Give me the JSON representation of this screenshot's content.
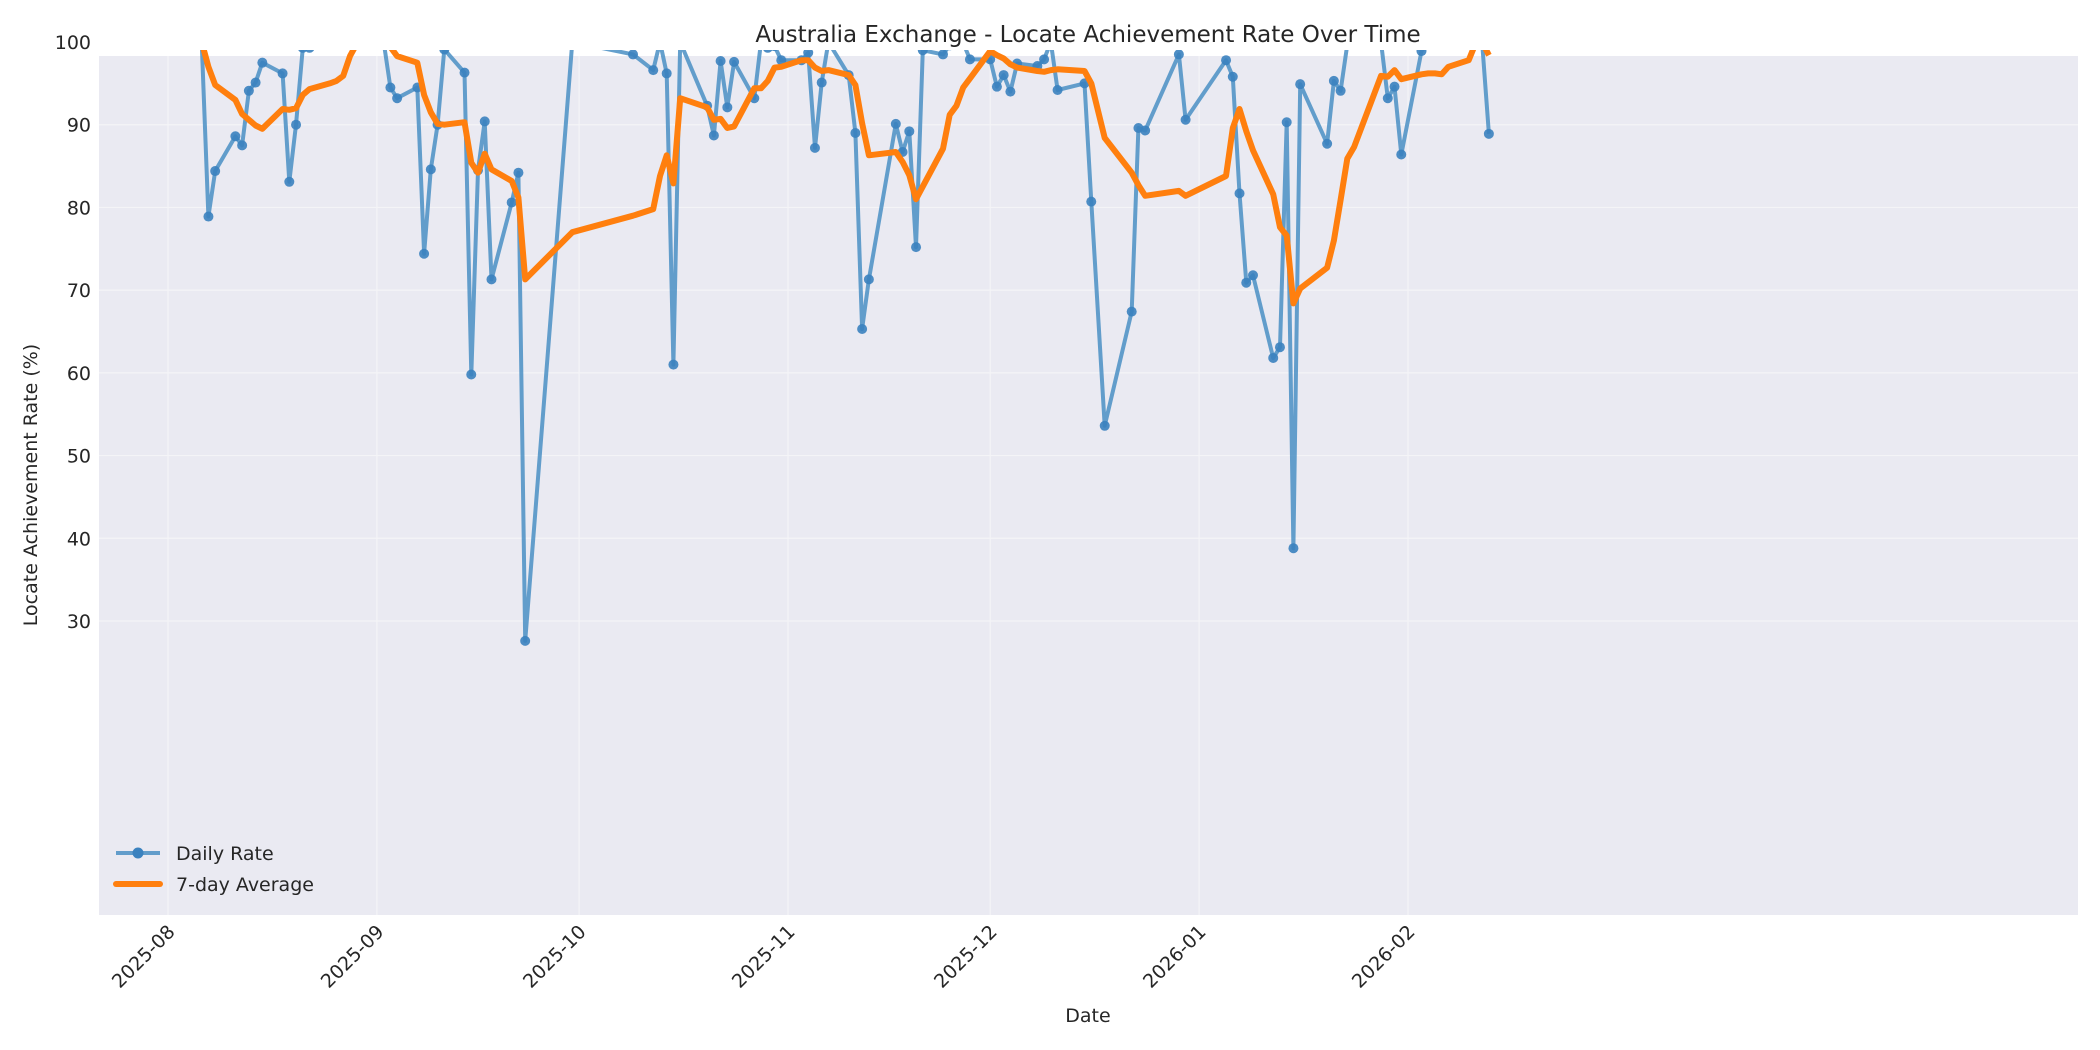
{
  "chart_data": {
    "type": "line",
    "title": "Australia Exchange - Locate Achievement Rate Over Time",
    "xlabel": "Date",
    "ylabel": "Locate Achievement Rate (%)",
    "ylim": [
      22.5,
      100
    ],
    "xlim": [
      "2025-07-18",
      "2026-02-17"
    ],
    "grid": true,
    "legend_position": "lower left",
    "x_ticks": [
      "2025-08",
      "2025-09",
      "2025-10",
      "2025-11",
      "2025-12",
      "2026-01",
      "2026-02"
    ],
    "y_ticks": [
      30,
      40,
      50,
      60,
      70,
      80,
      90,
      100
    ],
    "colors": {
      "daily": "#4a8fc4",
      "avg": "#ff7f0e",
      "plot_bg": "#eaeaf2",
      "grid": "#f5f5f8"
    },
    "series": [
      {
        "name": "Daily Rate",
        "marker": "circle",
        "points": [
          [
            "2025-07-28",
            100
          ],
          [
            "2025-07-29",
            100
          ],
          [
            "2025-07-30",
            100
          ],
          [
            "2025-07-31",
            100
          ],
          [
            "2025-08-01",
            99.7
          ],
          [
            "2025-08-04",
            100
          ],
          [
            "2025-08-05",
            100
          ],
          [
            "2025-08-06",
            100
          ],
          [
            "2025-08-07",
            78.9
          ],
          [
            "2025-08-08",
            84.4
          ],
          [
            "2025-08-11",
            88.6
          ],
          [
            "2025-08-12",
            87.5
          ],
          [
            "2025-08-13",
            94.1
          ],
          [
            "2025-08-14",
            95.1
          ],
          [
            "2025-08-15",
            97.5
          ],
          [
            "2025-08-18",
            96.2
          ],
          [
            "2025-08-19",
            83.1
          ],
          [
            "2025-08-20",
            90.0
          ],
          [
            "2025-08-21",
            99.3
          ],
          [
            "2025-08-22",
            99.3
          ],
          [
            "2025-08-25",
            100
          ],
          [
            "2025-08-26",
            100
          ],
          [
            "2025-08-27",
            100
          ],
          [
            "2025-08-28",
            100
          ],
          [
            "2025-08-29",
            100
          ],
          [
            "2025-09-01",
            100
          ],
          [
            "2025-09-02",
            100
          ],
          [
            "2025-09-03",
            94.5
          ],
          [
            "2025-09-04",
            93.2
          ],
          [
            "2025-09-07",
            94.5
          ],
          [
            "2025-09-08",
            74.4
          ],
          [
            "2025-09-09",
            84.6
          ],
          [
            "2025-09-10",
            90.0
          ],
          [
            "2025-09-11",
            99.1
          ],
          [
            "2025-09-14",
            96.3
          ],
          [
            "2025-09-15",
            59.8
          ],
          [
            "2025-09-16",
            84.5
          ],
          [
            "2025-09-17",
            90.4
          ],
          [
            "2025-09-18",
            71.3
          ],
          [
            "2025-09-21",
            80.6
          ],
          [
            "2025-09-22",
            84.2
          ],
          [
            "2025-09-23",
            27.6
          ],
          [
            "2025-09-30",
            100
          ],
          [
            "2025-10-09",
            98.5
          ],
          [
            "2025-10-12",
            96.6
          ],
          [
            "2025-10-13",
            100
          ],
          [
            "2025-10-14",
            96.2
          ],
          [
            "2025-10-15",
            61.0
          ],
          [
            "2025-10-16",
            100
          ],
          [
            "2025-10-20",
            92.3
          ],
          [
            "2025-10-21",
            88.7
          ],
          [
            "2025-10-22",
            97.7
          ],
          [
            "2025-10-23",
            92.1
          ],
          [
            "2025-10-24",
            97.6
          ],
          [
            "2025-10-27",
            93.2
          ],
          [
            "2025-10-28",
            100
          ],
          [
            "2025-10-29",
            99.3
          ],
          [
            "2025-10-30",
            99.5
          ],
          [
            "2025-10-31",
            97.8
          ],
          [
            "2025-11-03",
            97.8
          ],
          [
            "2025-11-04",
            98.7
          ],
          [
            "2025-11-05",
            87.2
          ],
          [
            "2025-11-06",
            95.1
          ],
          [
            "2025-11-07",
            100
          ],
          [
            "2025-11-10",
            96.0
          ],
          [
            "2025-11-11",
            89.0
          ],
          [
            "2025-11-12",
            65.3
          ],
          [
            "2025-11-13",
            71.3
          ],
          [
            "2025-11-17",
            90.1
          ],
          [
            "2025-11-18",
            86.7
          ],
          [
            "2025-11-19",
            89.2
          ],
          [
            "2025-11-20",
            75.2
          ],
          [
            "2025-11-21",
            99.0
          ],
          [
            "2025-11-24",
            98.5
          ],
          [
            "2025-11-25",
            99.6
          ],
          [
            "2025-11-26",
            99.7
          ],
          [
            "2025-11-27",
            99.9
          ],
          [
            "2025-11-28",
            97.9
          ],
          [
            "2025-12-01",
            97.9
          ],
          [
            "2025-12-02",
            94.6
          ],
          [
            "2025-12-03",
            96.0
          ],
          [
            "2025-12-04",
            94.0
          ],
          [
            "2025-12-05",
            97.4
          ],
          [
            "2025-12-08",
            97.1
          ],
          [
            "2025-12-09",
            97.9
          ],
          [
            "2025-12-10",
            100
          ],
          [
            "2025-12-11",
            94.2
          ],
          [
            "2025-12-15",
            95.0
          ],
          [
            "2025-12-16",
            80.7
          ],
          [
            "2025-12-18",
            53.6
          ],
          [
            "2025-12-22",
            67.4
          ],
          [
            "2025-12-23",
            89.6
          ],
          [
            "2025-12-24",
            89.3
          ],
          [
            "2025-12-29",
            98.5
          ],
          [
            "2025-12-30",
            90.6
          ],
          [
            "2026-01-05",
            97.8
          ],
          [
            "2026-01-06",
            95.8
          ],
          [
            "2026-01-07",
            81.7
          ],
          [
            "2026-01-08",
            70.9
          ],
          [
            "2026-01-09",
            71.8
          ],
          [
            "2026-01-12",
            61.8
          ],
          [
            "2026-01-13",
            63.1
          ],
          [
            "2026-01-14",
            90.3
          ],
          [
            "2026-01-15",
            38.8
          ],
          [
            "2026-01-16",
            94.9
          ],
          [
            "2026-01-20",
            87.7
          ],
          [
            "2026-01-21",
            95.3
          ],
          [
            "2026-01-22",
            94.1
          ],
          [
            "2026-01-23",
            99.7
          ],
          [
            "2026-01-24",
            100
          ],
          [
            "2026-01-28",
            100
          ],
          [
            "2026-01-29",
            93.2
          ],
          [
            "2026-01-30",
            94.6
          ],
          [
            "2026-01-31",
            86.4
          ],
          [
            "2026-02-03",
            98.9
          ],
          [
            "2026-02-04",
            100
          ],
          [
            "2026-02-05",
            100
          ],
          [
            "2026-02-06",
            100
          ],
          [
            "2026-02-07",
            100
          ],
          [
            "2026-02-10",
            100
          ],
          [
            "2026-02-11",
            100
          ],
          [
            "2026-02-12",
            100
          ],
          [
            "2026-02-13",
            88.9
          ]
        ]
      },
      {
        "name": "7-day Average",
        "marker": "none",
        "points": [
          [
            "2025-07-28",
            100
          ],
          [
            "2025-08-06",
            100
          ],
          [
            "2025-08-07",
            97.0
          ],
          [
            "2025-08-08",
            94.8
          ],
          [
            "2025-08-11",
            93.0
          ],
          [
            "2025-08-12",
            91.3
          ],
          [
            "2025-08-13",
            90.6
          ],
          [
            "2025-08-14",
            89.9
          ],
          [
            "2025-08-15",
            89.5
          ],
          [
            "2025-08-18",
            91.9
          ],
          [
            "2025-08-19",
            91.8
          ],
          [
            "2025-08-20",
            92.0
          ],
          [
            "2025-08-21",
            93.6
          ],
          [
            "2025-08-22",
            94.3
          ],
          [
            "2025-08-25",
            95.0
          ],
          [
            "2025-08-26",
            95.3
          ],
          [
            "2025-08-27",
            95.9
          ],
          [
            "2025-08-28",
            98.3
          ],
          [
            "2025-08-29",
            99.8
          ],
          [
            "2025-09-01",
            99.9
          ],
          [
            "2025-09-02",
            100
          ],
          [
            "2025-09-03",
            99.4
          ],
          [
            "2025-09-04",
            98.3
          ],
          [
            "2025-09-07",
            97.5
          ],
          [
            "2025-09-08",
            93.6
          ],
          [
            "2025-09-09",
            91.5
          ],
          [
            "2025-09-10",
            90.1
          ],
          [
            "2025-09-11",
            90.0
          ],
          [
            "2025-09-14",
            90.3
          ],
          [
            "2025-09-15",
            85.4
          ],
          [
            "2025-09-16",
            84.2
          ],
          [
            "2025-09-17",
            86.5
          ],
          [
            "2025-09-18",
            84.6
          ],
          [
            "2025-09-21",
            83.2
          ],
          [
            "2025-09-22",
            81.2
          ],
          [
            "2025-09-23",
            71.3
          ],
          [
            "2025-09-30",
            77.0
          ],
          [
            "2025-10-09",
            79.0
          ],
          [
            "2025-10-12",
            79.8
          ],
          [
            "2025-10-13",
            83.8
          ],
          [
            "2025-10-14",
            86.3
          ],
          [
            "2025-10-15",
            82.9
          ],
          [
            "2025-10-16",
            93.2
          ],
          [
            "2025-10-20",
            92.1
          ],
          [
            "2025-10-21",
            90.6
          ],
          [
            "2025-10-22",
            90.7
          ],
          [
            "2025-10-23",
            89.6
          ],
          [
            "2025-10-24",
            89.8
          ],
          [
            "2025-10-27",
            94.4
          ],
          [
            "2025-10-28",
            94.4
          ],
          [
            "2025-10-29",
            95.3
          ],
          [
            "2025-10-30",
            96.9
          ],
          [
            "2025-10-31",
            97.0
          ],
          [
            "2025-11-03",
            97.8
          ],
          [
            "2025-11-04",
            97.8
          ],
          [
            "2025-11-05",
            96.9
          ],
          [
            "2025-11-06",
            96.5
          ],
          [
            "2025-11-07",
            96.6
          ],
          [
            "2025-11-10",
            96.0
          ],
          [
            "2025-11-11",
            94.8
          ],
          [
            "2025-11-12",
            90.2
          ],
          [
            "2025-11-13",
            86.3
          ],
          [
            "2025-11-17",
            86.7
          ],
          [
            "2025-11-18",
            85.5
          ],
          [
            "2025-11-19",
            83.9
          ],
          [
            "2025-11-20",
            81.0
          ],
          [
            "2025-11-24",
            87.1
          ],
          [
            "2025-11-25",
            91.2
          ],
          [
            "2025-11-26",
            92.3
          ],
          [
            "2025-11-27",
            94.5
          ],
          [
            "2025-11-28",
            95.6
          ],
          [
            "2025-12-01",
            98.9
          ],
          [
            "2025-12-02",
            98.4
          ],
          [
            "2025-12-03",
            98.0
          ],
          [
            "2025-12-04",
            97.3
          ],
          [
            "2025-12-05",
            96.9
          ],
          [
            "2025-12-08",
            96.5
          ],
          [
            "2025-12-09",
            96.4
          ],
          [
            "2025-12-10",
            96.6
          ],
          [
            "2025-12-11",
            96.7
          ],
          [
            "2025-12-15",
            96.5
          ],
          [
            "2025-12-16",
            95.0
          ],
          [
            "2025-12-18",
            88.4
          ],
          [
            "2025-12-22",
            84.2
          ],
          [
            "2025-12-23",
            82.7
          ],
          [
            "2025-12-24",
            81.4
          ],
          [
            "2025-12-29",
            82.0
          ],
          [
            "2025-12-30",
            81.4
          ],
          [
            "2026-01-05",
            83.8
          ],
          [
            "2026-01-06",
            89.6
          ],
          [
            "2026-01-07",
            91.9
          ],
          [
            "2026-01-08",
            89.2
          ],
          [
            "2026-01-09",
            86.9
          ],
          [
            "2026-01-12",
            81.6
          ],
          [
            "2026-01-13",
            77.6
          ],
          [
            "2026-01-14",
            76.6
          ],
          [
            "2026-01-15",
            68.4
          ],
          [
            "2026-01-16",
            70.2
          ],
          [
            "2026-01-20",
            72.7
          ],
          [
            "2026-01-21",
            76.0
          ],
          [
            "2026-01-22",
            80.9
          ],
          [
            "2026-01-23",
            85.9
          ],
          [
            "2026-01-24",
            87.3
          ],
          [
            "2026-01-28",
            95.9
          ],
          [
            "2026-01-29",
            95.8
          ],
          [
            "2026-01-30",
            96.6
          ],
          [
            "2026-01-31",
            95.5
          ],
          [
            "2026-02-03",
            96.1
          ],
          [
            "2026-02-04",
            96.2
          ],
          [
            "2026-02-05",
            96.2
          ],
          [
            "2026-02-06",
            96.1
          ],
          [
            "2026-02-07",
            97.0
          ],
          [
            "2026-02-10",
            97.8
          ],
          [
            "2026-02-11",
            99.8
          ],
          [
            "2026-02-12",
            100
          ],
          [
            "2026-02-13",
            98.4
          ]
        ]
      }
    ]
  },
  "legend": {
    "items": [
      {
        "label": "Daily Rate"
      },
      {
        "label": "7-day Average"
      }
    ]
  }
}
